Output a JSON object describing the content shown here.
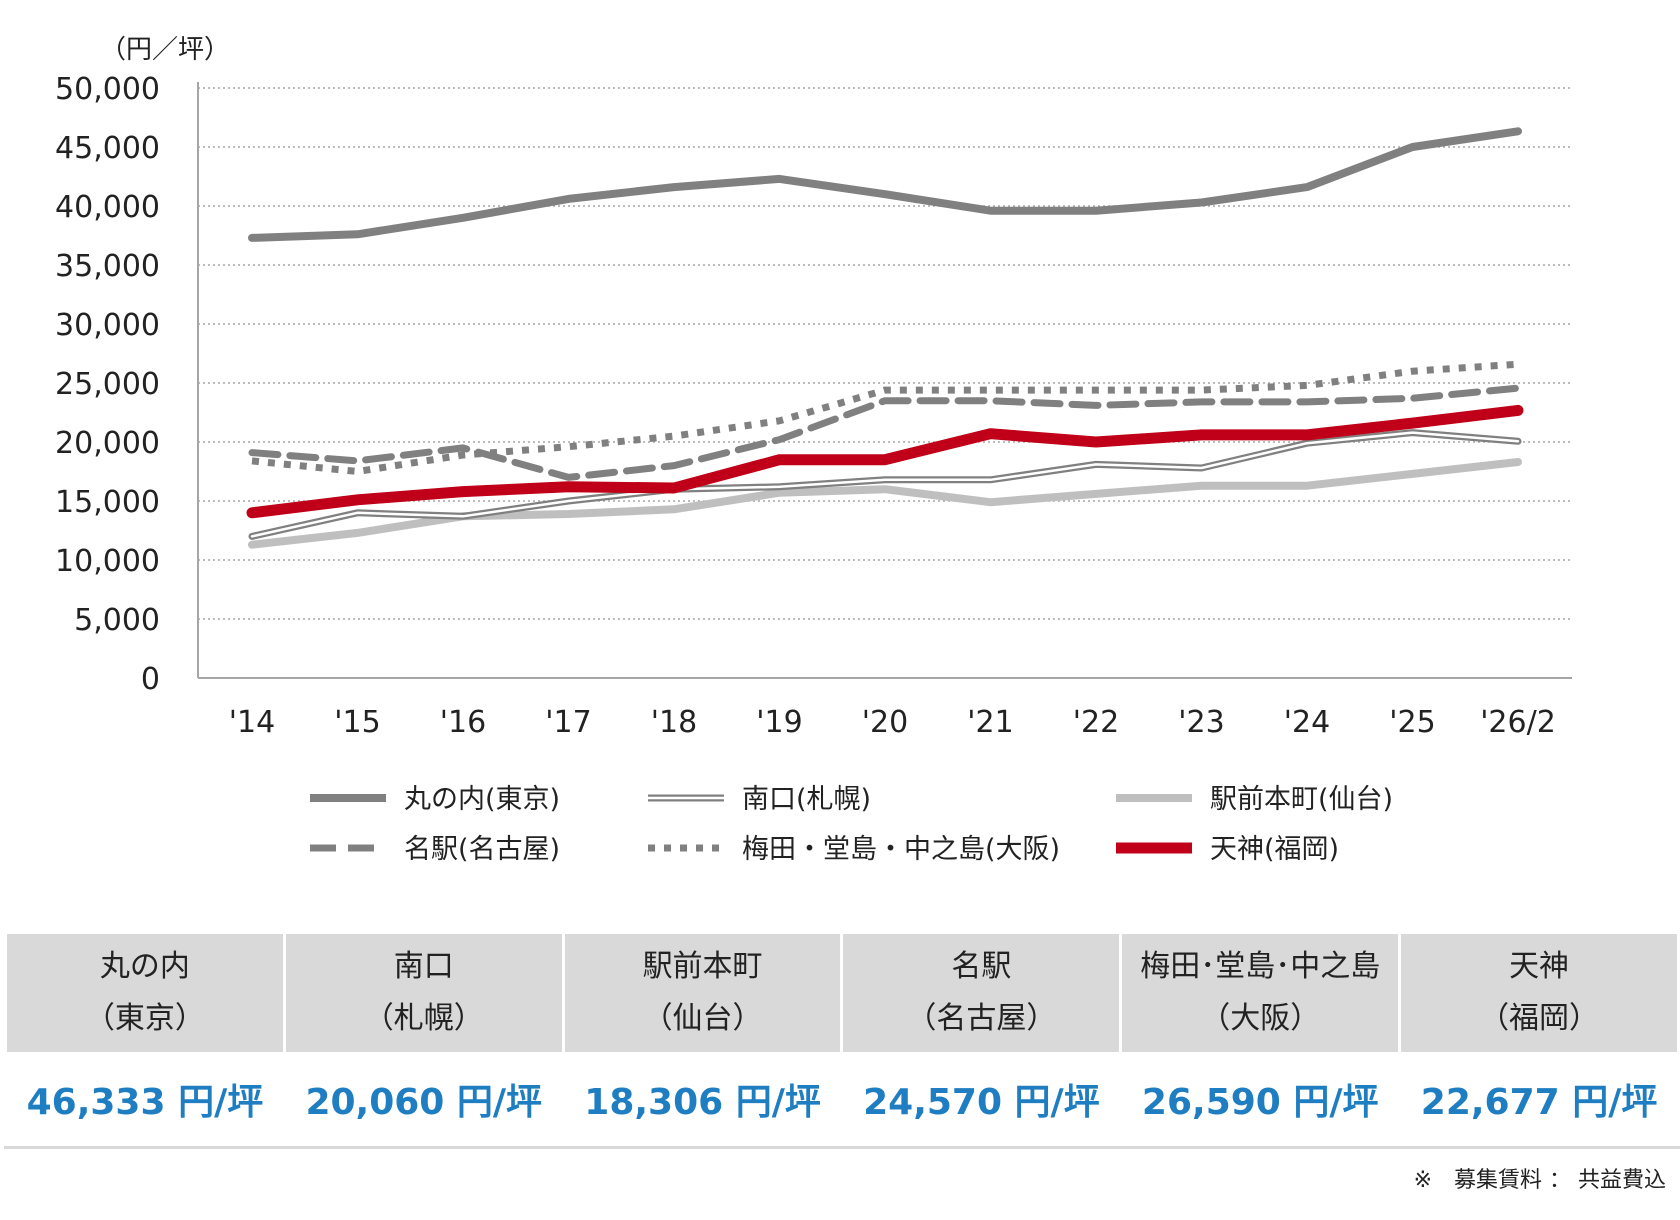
{
  "chart_data": {
    "type": "line",
    "unit_label": "（円／坪）",
    "ylim": [
      0,
      50000
    ],
    "y_ticks": [
      "0",
      "5,000",
      "10,000",
      "15,000",
      "20,000",
      "25,000",
      "30,000",
      "35,000",
      "40,000",
      "45,000",
      "50,000"
    ],
    "y_tick_values": [
      0,
      5000,
      10000,
      15000,
      20000,
      25000,
      30000,
      35000,
      40000,
      45000,
      50000
    ],
    "categories": [
      "'14",
      "'15",
      "'16",
      "'17",
      "'18",
      "'19",
      "'20",
      "'21",
      "'22",
      "'23",
      "'24",
      "'25",
      "'26/2"
    ],
    "grid": true,
    "legend_position": "bottom",
    "series": [
      {
        "name": "丸の内(東京)",
        "style": "thick-solid",
        "color": "#808080",
        "values": [
          37300,
          37600,
          39000,
          40600,
          41600,
          42300,
          41000,
          39600,
          39600,
          40300,
          41600,
          45000,
          46333
        ]
      },
      {
        "name": "南口(札幌)",
        "style": "double",
        "color": "#808080",
        "values": [
          12000,
          14000,
          13700,
          15000,
          16000,
          16200,
          16800,
          16800,
          18100,
          17800,
          19900,
          20800,
          20060
        ]
      },
      {
        "name": "駅前本町(仙台)",
        "style": "thick-solid",
        "color": "#bfbfbf",
        "values": [
          11300,
          12300,
          13700,
          13900,
          14300,
          15700,
          16000,
          14900,
          15600,
          16300,
          16300,
          17300,
          18306
        ]
      },
      {
        "name": "名駅(名古屋)",
        "style": "dashed",
        "color": "#808080",
        "values": [
          19100,
          18400,
          19500,
          17000,
          18000,
          20200,
          23500,
          23500,
          23100,
          23400,
          23400,
          23700,
          24570
        ]
      },
      {
        "name": "梅田・堂島・中之島(大阪)",
        "style": "dotted",
        "color": "#808080",
        "values": [
          18400,
          17500,
          18900,
          19600,
          20500,
          21800,
          24400,
          24400,
          24400,
          24400,
          24800,
          26000,
          26590
        ]
      },
      {
        "name": "天神(福岡)",
        "style": "thick-solid",
        "color": "#c00018",
        "values": [
          14000,
          15100,
          15800,
          16200,
          16100,
          18500,
          18500,
          20700,
          20000,
          20600,
          20600,
          21600,
          22677
        ]
      }
    ]
  },
  "table": {
    "columns": [
      {
        "name_line1": "丸の内",
        "name_line2": "（東京）",
        "value": "46,333 円/坪"
      },
      {
        "name_line1": "南口",
        "name_line2": "（札幌）",
        "value": "20,060 円/坪"
      },
      {
        "name_line1": "駅前本町",
        "name_line2": "（仙台）",
        "value": "18,306 円/坪"
      },
      {
        "name_line1": "名駅",
        "name_line2": "（名古屋）",
        "value": "24,570 円/坪"
      },
      {
        "name_line1": "梅田･堂島･中之島",
        "name_line2": "（大阪）",
        "value": "26,590 円/坪"
      },
      {
        "name_line1": "天神",
        "name_line2": "（福岡）",
        "value": "22,677 円/坪"
      }
    ],
    "value_color": "#1f7ec2"
  },
  "note": "※　募集賃料 ： 共益費込"
}
